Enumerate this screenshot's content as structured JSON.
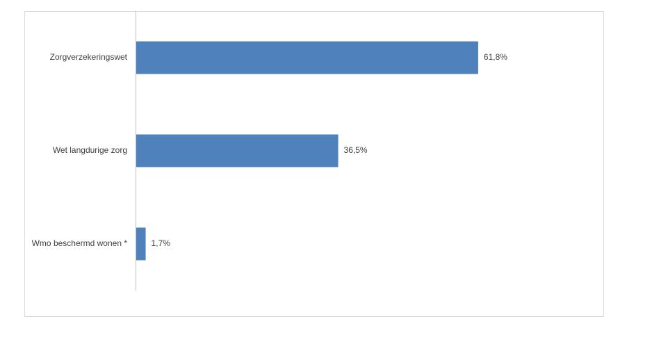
{
  "chart_data": {
    "type": "bar",
    "categories": [
      "Zorgverzekeringswet",
      "Wet langdurige zorg",
      "Wmo beschermd wonen *"
    ],
    "values": [
      61.8,
      36.5,
      1.7
    ],
    "value_labels": [
      "61,8%",
      "36,5%",
      "1,7%"
    ],
    "color": "#4f81bd"
  }
}
